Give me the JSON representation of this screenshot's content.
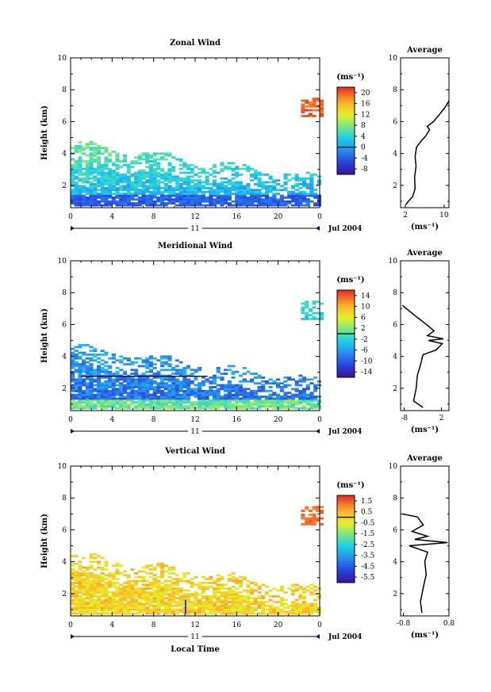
{
  "figure": {
    "bottom_xlabel": "Local Time",
    "date_label": "Jul 2004",
    "day_label": "11"
  },
  "chart_data": [
    {
      "type": "heatmap",
      "title": "Zonal Wind",
      "xlabel": "",
      "ylabel": "Height (km)",
      "x_ticks": [
        "0",
        "4",
        "8",
        "12",
        "16",
        "20",
        "0"
      ],
      "y_ticks": [
        "2",
        "4",
        "6",
        "8",
        "10"
      ],
      "xlim": [
        0,
        24
      ],
      "ylim": [
        0.6,
        10
      ],
      "colorbar": {
        "unit": "(ms⁻¹)",
        "ticks": [
          "20",
          "16",
          "12",
          "8",
          "4",
          "0",
          "-4",
          "-8"
        ],
        "range": [
          -10,
          22
        ]
      },
      "data_description": "Echo region from ~0.7 to ~4.8 km; strong westerlies aloft near 6.5-7.5 km after 22 LT",
      "average_profile": {
        "title": "Average",
        "xlabel": "(ms⁻¹)",
        "x_ticks": [
          "2",
          "10"
        ],
        "xlim": [
          1,
          11
        ],
        "y_ticks": [
          "2",
          "4",
          "6",
          "8",
          "10"
        ],
        "ylim": [
          0.6,
          10
        ],
        "points": [
          [
            2.1,
            0.8
          ],
          [
            2.6,
            1.0
          ],
          [
            3.5,
            1.3
          ],
          [
            4.0,
            1.8
          ],
          [
            3.9,
            2.5
          ],
          [
            4.2,
            3.2
          ],
          [
            4.0,
            3.8
          ],
          [
            4.3,
            4.4
          ],
          [
            5.3,
            4.8
          ],
          [
            6.2,
            5.1
          ],
          [
            6.6,
            5.3
          ],
          [
            7.0,
            5.5
          ],
          [
            6.5,
            5.7
          ],
          [
            7.8,
            6.0
          ],
          [
            8.9,
            6.4
          ],
          [
            10.2,
            6.9
          ],
          [
            11.0,
            7.3
          ]
        ]
      }
    },
    {
      "type": "heatmap",
      "title": "Meridional Wind",
      "xlabel": "",
      "ylabel": "Height (km)",
      "x_ticks": [
        "0",
        "4",
        "8",
        "12",
        "16",
        "20",
        "0"
      ],
      "y_ticks": [
        "2",
        "4",
        "6",
        "8",
        "10"
      ],
      "xlim": [
        0,
        24
      ],
      "ylim": [
        0.6,
        10
      ],
      "colorbar": {
        "unit": "(ms⁻¹)",
        "ticks": [
          "14",
          "10",
          "6",
          "2",
          "-2",
          "-6",
          "-10",
          "-14"
        ],
        "range": [
          -16,
          16
        ]
      },
      "data_description": "Mostly southward (negative) flow below 4 km; echo aloft near 7 km after 22 LT",
      "average_profile": {
        "title": "Average",
        "xlabel": "(ms⁻¹)",
        "x_ticks": [
          "-8",
          "2"
        ],
        "xlim": [
          -9,
          4
        ],
        "y_ticks": [
          "2",
          "4",
          "6",
          "8",
          "10"
        ],
        "ylim": [
          0.6,
          10
        ],
        "points": [
          [
            -3.0,
            0.8
          ],
          [
            -5.5,
            1.2
          ],
          [
            -4.8,
            2.0
          ],
          [
            -4.5,
            2.8
          ],
          [
            -3.5,
            3.6
          ],
          [
            -3.0,
            4.1
          ],
          [
            0.5,
            4.4
          ],
          [
            2.2,
            4.8
          ],
          [
            -1.5,
            5.0
          ],
          [
            2.5,
            5.1
          ],
          [
            -1.8,
            5.3
          ],
          [
            0.0,
            5.6
          ],
          [
            -2.0,
            6.0
          ],
          [
            -4.8,
            6.5
          ],
          [
            -8.5,
            7.2
          ]
        ]
      }
    },
    {
      "type": "heatmap",
      "title": "Vertical Wind",
      "xlabel": "Local Time",
      "ylabel": "Height (km)",
      "x_ticks": [
        "0",
        "4",
        "8",
        "12",
        "16",
        "20",
        "0"
      ],
      "y_ticks": [
        "2",
        "4",
        "6",
        "8",
        "10"
      ],
      "xlim": [
        0,
        24
      ],
      "ylim": [
        0.6,
        10
      ],
      "colorbar": {
        "unit": "(ms⁻¹)",
        "ticks": [
          "1.5",
          "0.5",
          "-0.5",
          "-1.5",
          "-2.5",
          "-3.5",
          "-4.5",
          "-5.5"
        ],
        "range": [
          -6.0,
          2.0
        ]
      },
      "data_description": "Weak updrafts/downdrafts near zero below 5 km; a narrow negative column near 11 LT",
      "average_profile": {
        "title": "Average",
        "xlabel": "(ms⁻¹)",
        "x_ticks": [
          "-0.8",
          "0.8"
        ],
        "xlim": [
          -0.9,
          0.8
        ],
        "y_ticks": [
          "2",
          "4",
          "6",
          "8",
          "10"
        ],
        "ylim": [
          0.6,
          10
        ],
        "points": [
          [
            -0.15,
            0.8
          ],
          [
            -0.2,
            1.5
          ],
          [
            -0.1,
            2.4
          ],
          [
            0.0,
            3.2
          ],
          [
            -0.05,
            4.0
          ],
          [
            0.05,
            4.6
          ],
          [
            -0.6,
            5.0
          ],
          [
            0.75,
            5.2
          ],
          [
            -0.4,
            5.4
          ],
          [
            0.05,
            5.6
          ],
          [
            -0.5,
            5.9
          ],
          [
            -0.1,
            6.3
          ],
          [
            -0.3,
            6.8
          ],
          [
            -0.85,
            7.0
          ]
        ]
      }
    }
  ]
}
